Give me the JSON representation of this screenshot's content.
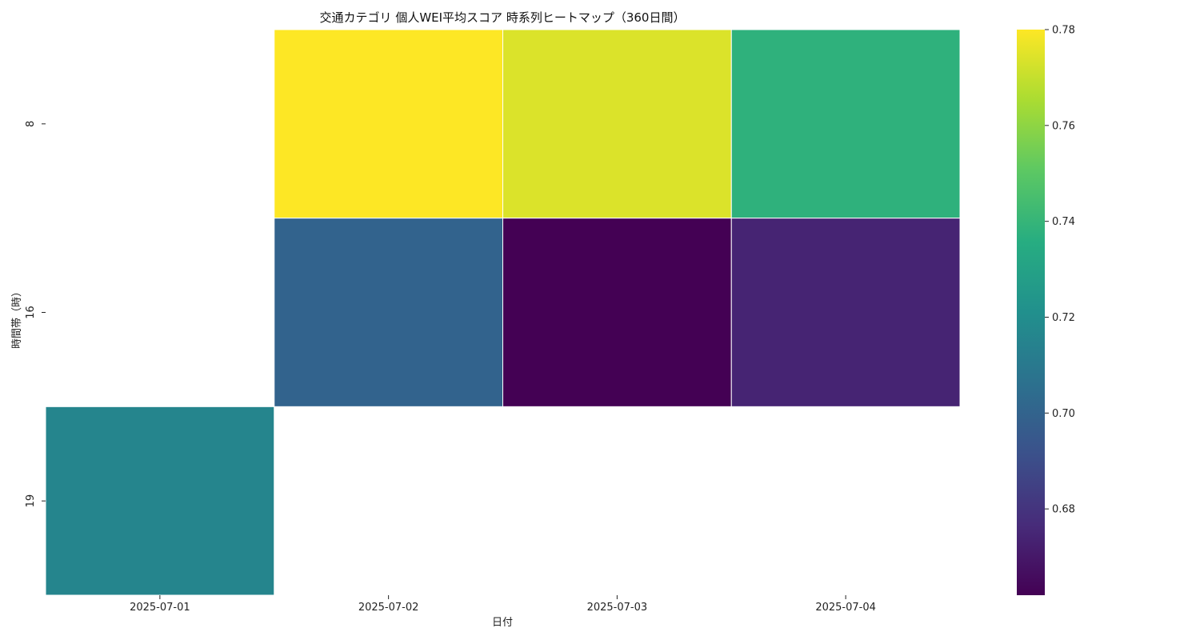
{
  "chart_data": {
    "type": "heatmap",
    "title": "交通カテゴリ 個人WEI平均スコア 時系列ヒートマップ（360日間）",
    "xlabel": "日付",
    "ylabel": "時間帯（時）",
    "x_categories": [
      "2025-07-01",
      "2025-07-02",
      "2025-07-03",
      "2025-07-04"
    ],
    "y_categories": [
      "8",
      "16",
      "19"
    ],
    "values": [
      [
        null,
        0.78,
        0.774,
        0.738
      ],
      [
        null,
        0.7,
        0.662,
        0.674
      ],
      [
        0.716,
        null,
        null,
        null
      ]
    ],
    "colormap": "viridis",
    "colorbar": {
      "vmin": 0.662,
      "vmax": 0.78,
      "ticks": [
        "0.68",
        "0.70",
        "0.72",
        "0.74",
        "0.76",
        "0.78"
      ]
    },
    "cell_border_color": "#ffffff"
  }
}
